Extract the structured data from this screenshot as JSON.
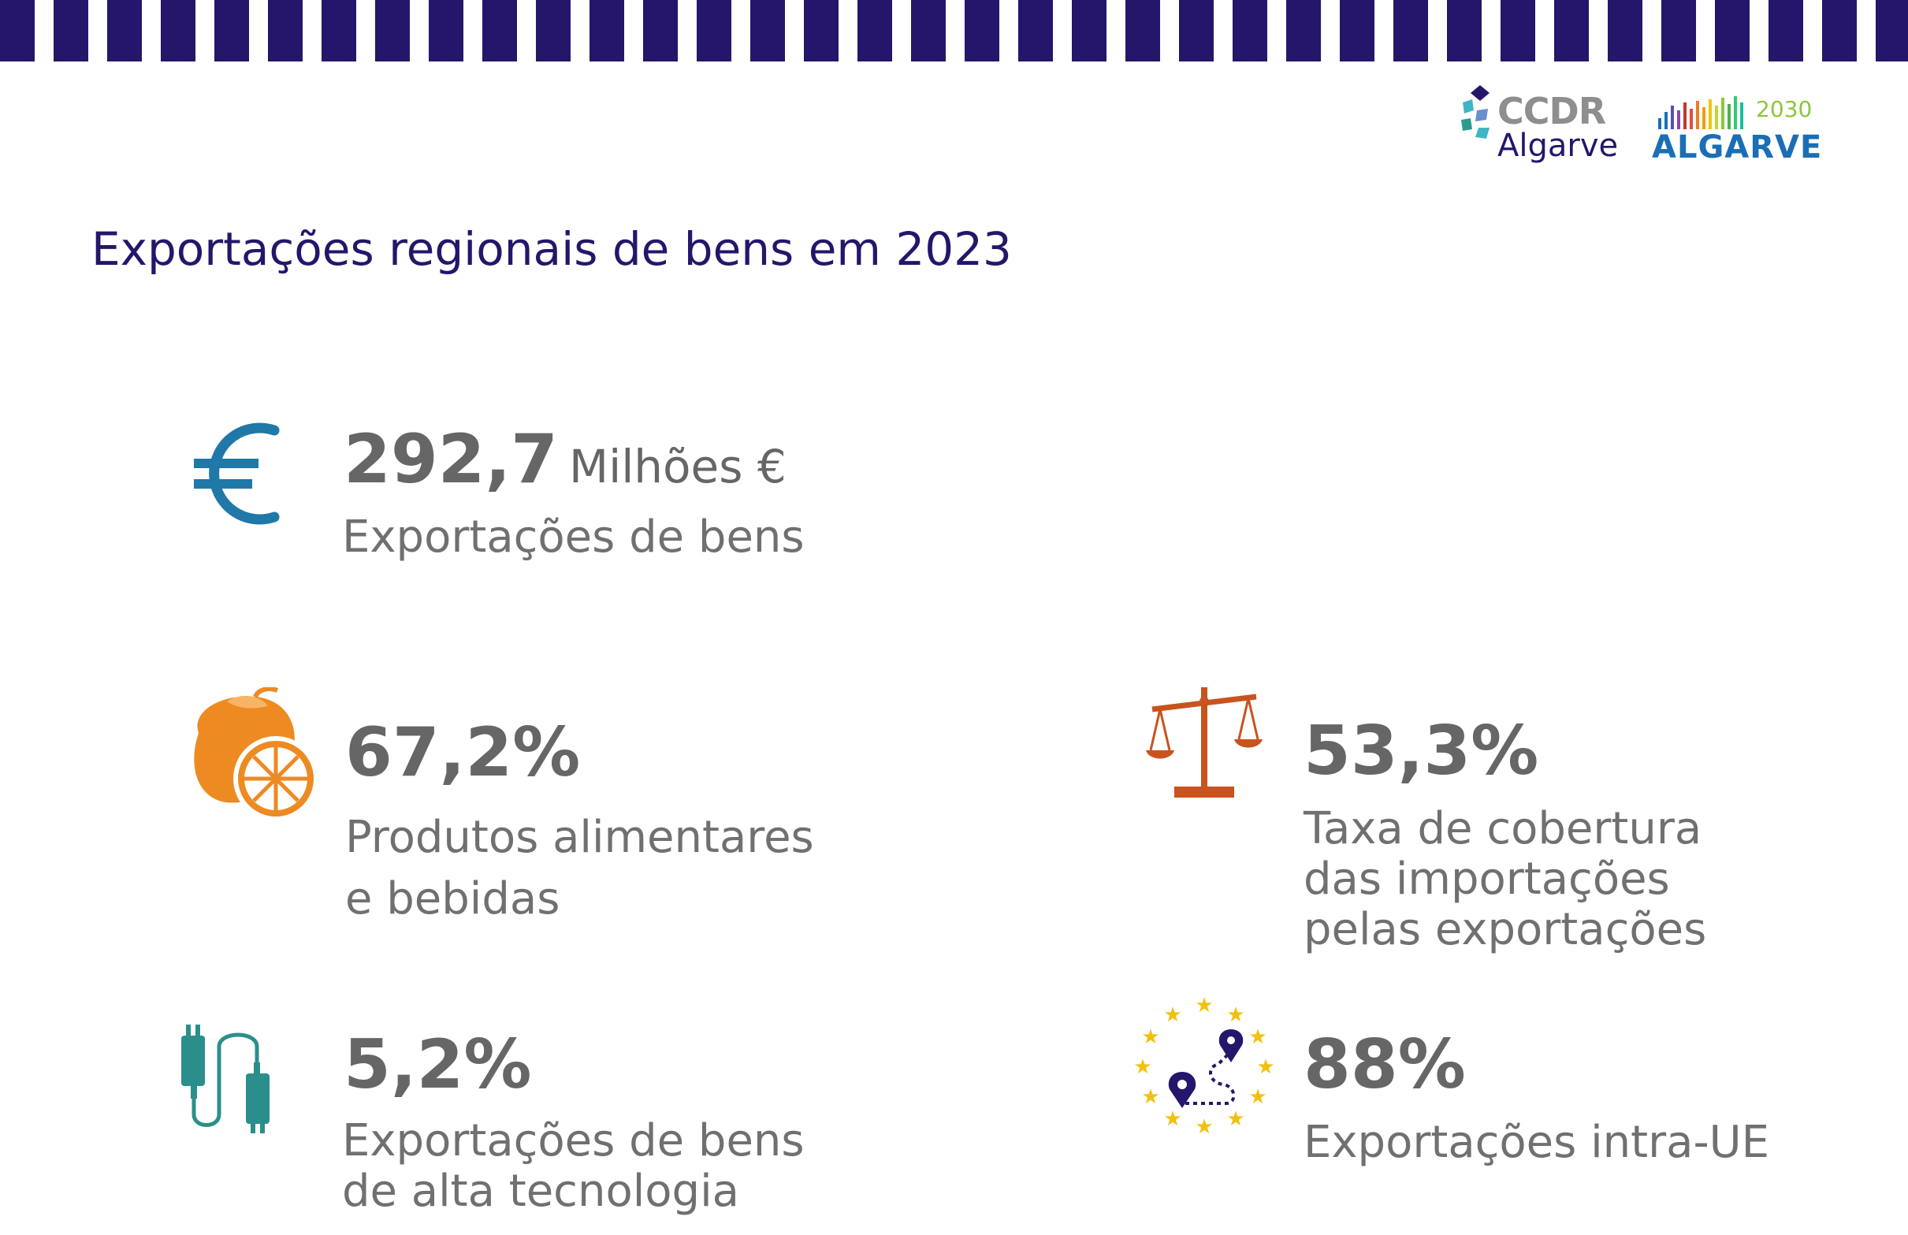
{
  "header": {
    "logos": {
      "ccdr_line1": "CCDR",
      "ccdr_line2": "Algarve",
      "algarve_year": "2030",
      "algarve_word": "ALGARVE"
    },
    "title": "Exportações regionais de bens em 2023"
  },
  "colors": {
    "stripe": "#25166b",
    "title": "#25166b",
    "value_text": "#666666",
    "desc_text": "#707070",
    "euro_icon": "#1f78a8",
    "fruit_icon": "#ee8a22",
    "scale_icon": "#c8531e",
    "cable_icon": "#2a8f8a",
    "eu_stars": "#f2c10f",
    "eu_pins": "#25166b"
  },
  "stats": [
    {
      "icon": "euro-icon",
      "value": "292,7",
      "unit": "Milhões €",
      "desc": [
        "Exportações de bens"
      ]
    },
    {
      "icon": "orange-fruit-icon",
      "value": "67,2%",
      "desc": [
        "Produtos alimentares",
        "e bebidas"
      ]
    },
    {
      "icon": "balance-scale-icon",
      "value": "53,3%",
      "desc": [
        "Taxa de cobertura",
        "das importações",
        "pelas exportações"
      ]
    },
    {
      "icon": "usb-cable-icon",
      "value": "5,2%",
      "desc": [
        "Exportações de bens",
        "de alta tecnologia"
      ]
    },
    {
      "icon": "eu-stars-route-icon",
      "value": "88%",
      "desc": [
        "Exportações intra-UE"
      ]
    }
  ]
}
